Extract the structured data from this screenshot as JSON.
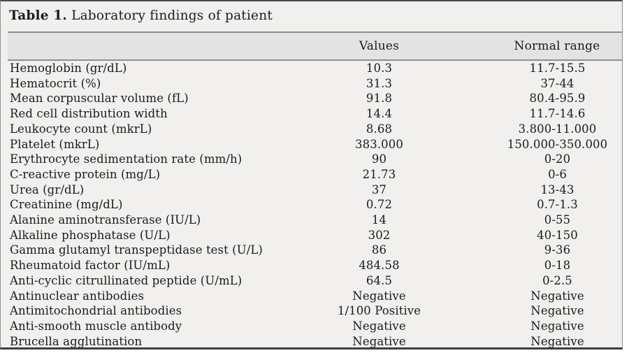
{
  "document": {
    "title": {
      "label": "Table 1.",
      "text": "Laboratory findings of patient"
    },
    "header": {
      "parameter": "",
      "values": "Values",
      "normal_range": "Normal range"
    },
    "rows": [
      {
        "parameter": "Hemoglobin (gr/dL)",
        "value": "10.3",
        "normal_range": "11.7-15.5"
      },
      {
        "parameter": "Hematocrit (%)",
        "value": "31.3",
        "normal_range": "37-44"
      },
      {
        "parameter": "Mean corpuscular volume (fL)",
        "value": "91.8",
        "normal_range": "80.4-95.9"
      },
      {
        "parameter": "Red cell distribution width",
        "value": "14.4",
        "normal_range": "11.7-14.6"
      },
      {
        "parameter": "Leukocyte count (mkrL)",
        "value": "8.68",
        "normal_range": "3.800-11.000"
      },
      {
        "parameter": "Platelet (mkrL)",
        "value": "383.000",
        "normal_range": "150.000-350.000"
      },
      {
        "parameter": "Erythrocyte sedimentation rate (mm/h)",
        "value": "90",
        "normal_range": "0-20"
      },
      {
        "parameter": "C-reactive protein (mg/L)",
        "value": "21.73",
        "normal_range": "0-6"
      },
      {
        "parameter": "Urea (gr/dL)",
        "value": "37",
        "normal_range": "13-43"
      },
      {
        "parameter": "Creatinine (mg/dL)",
        "value": "0.72",
        "normal_range": "0.7-1.3"
      },
      {
        "parameter": "Alanine aminotransferase (IU/L)",
        "value": "14",
        "normal_range": "0-55"
      },
      {
        "parameter": "Alkaline phosphatase (U/L)",
        "value": "302",
        "normal_range": "40-150"
      },
      {
        "parameter": "Gamma glutamyl transpeptidase test (U/L)",
        "value": "86",
        "normal_range": "9-36"
      },
      {
        "parameter": "Rheumatoid factor (IU/mL)",
        "value": "484.58",
        "normal_range": "0-18"
      },
      {
        "parameter": "Anti-cyclic citrullinated peptide (U/mL)",
        "value": "64.5",
        "normal_range": "0-2.5"
      },
      {
        "parameter": "Antinuclear antibodies",
        "value": "Negative",
        "normal_range": "Negative"
      },
      {
        "parameter": "Antimitochondrial antibodies",
        "value": "1/100 Positive",
        "normal_range": "Negative"
      },
      {
        "parameter": "Anti-smooth muscle antibody",
        "value": "Negative",
        "normal_range": "Negative"
      },
      {
        "parameter": "Brucella agglutination",
        "value": "Negative",
        "normal_range": "Negative"
      }
    ],
    "colors": {
      "frame_background": "#f1f0ee",
      "header_band_background": "#e4e3e1",
      "rule_gray": "#8e8e8e",
      "top_border": "#4a4a4c",
      "bottom_border": "#3e3e3e",
      "text": "#1b1b1b"
    }
  }
}
